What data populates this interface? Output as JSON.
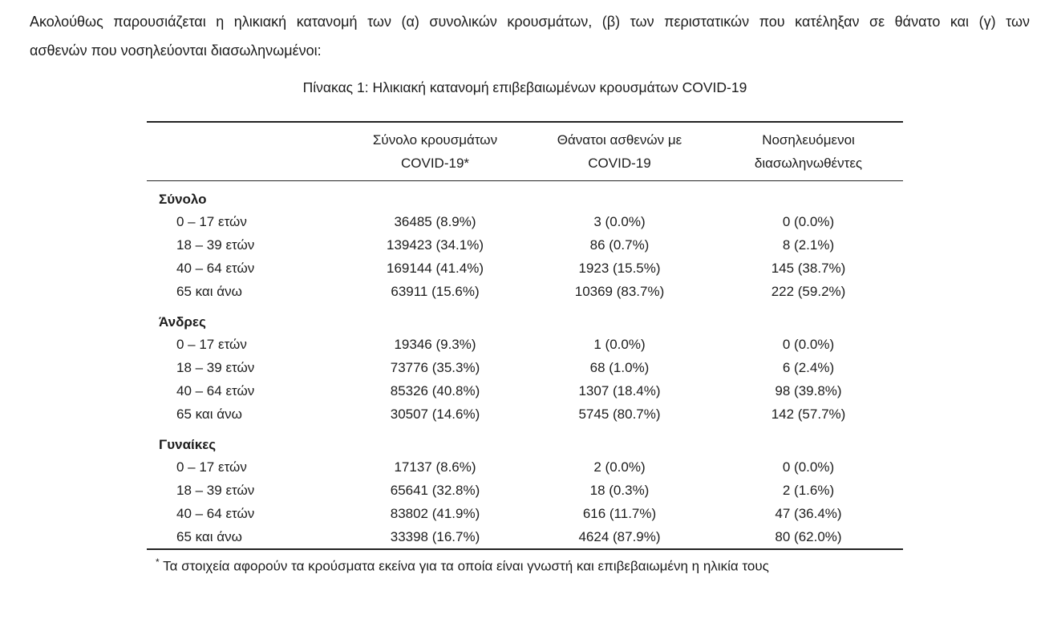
{
  "intro": {
    "lines": [
      "Ακολούθως παρουσιάζεται η ηλικιακή κατανομή των (α) συνολικών κρουσμάτων, (β) των περιστατικών που κατέληξαν σε θάνατο και (γ) των",
      "ασθενών που νοσηλεύονται διασωληνωμένοι:"
    ]
  },
  "table": {
    "title": "Πίνακας 1: Ηλικιακή κατανομή επιβεβαιωμένων κρουσμάτων COVID-19",
    "columns": [
      {
        "line1": "Σύνολο κρουσμάτων",
        "line2": "COVID-19*"
      },
      {
        "line1": "Θάνατοι ασθενών με",
        "line2": "COVID-19"
      },
      {
        "line1": "Νοσηλευόμενοι",
        "line2": "διασωληνωθέντες"
      }
    ],
    "groups": [
      {
        "label": "Σύνολο",
        "rows": [
          {
            "age": "0 – 17 ετών",
            "cases": "36485 (8.9%)",
            "deaths": "3 (0.0%)",
            "intubated": "0 (0.0%)"
          },
          {
            "age": "18 – 39 ετών",
            "cases": "139423 (34.1%)",
            "deaths": "86 (0.7%)",
            "intubated": "8 (2.1%)"
          },
          {
            "age": "40 – 64 ετών",
            "cases": "169144 (41.4%)",
            "deaths": "1923 (15.5%)",
            "intubated": "145 (38.7%)"
          },
          {
            "age": "65 και άνω",
            "cases": "63911 (15.6%)",
            "deaths": "10369 (83.7%)",
            "intubated": "222 (59.2%)"
          }
        ]
      },
      {
        "label": "Άνδρες",
        "rows": [
          {
            "age": "0 – 17 ετών",
            "cases": "19346 (9.3%)",
            "deaths": "1 (0.0%)",
            "intubated": "0 (0.0%)"
          },
          {
            "age": "18 – 39 ετών",
            "cases": "73776 (35.3%)",
            "deaths": "68 (1.0%)",
            "intubated": "6 (2.4%)"
          },
          {
            "age": "40 – 64 ετών",
            "cases": "85326 (40.8%)",
            "deaths": "1307 (18.4%)",
            "intubated": "98 (39.8%)"
          },
          {
            "age": "65 και άνω",
            "cases": "30507 (14.6%)",
            "deaths": "5745 (80.7%)",
            "intubated": "142 (57.7%)"
          }
        ]
      },
      {
        "label": "Γυναίκες",
        "rows": [
          {
            "age": "0 – 17 ετών",
            "cases": "17137 (8.6%)",
            "deaths": "2 (0.0%)",
            "intubated": "0 (0.0%)"
          },
          {
            "age": "18 – 39 ετών",
            "cases": "65641 (32.8%)",
            "deaths": "18 (0.3%)",
            "intubated": "2 (1.6%)"
          },
          {
            "age": "40 – 64 ετών",
            "cases": "83802 (41.9%)",
            "deaths": "616 (11.7%)",
            "intubated": "47 (36.4%)"
          },
          {
            "age": "65 και άνω",
            "cases": "33398 (16.7%)",
            "deaths": "4624 (87.9%)",
            "intubated": "80 (62.0%)"
          }
        ]
      }
    ],
    "footnote_marker": "*",
    "footnote": "Τα στοιχεία αφορούν τα κρούσματα εκείνα για τα οποία είναι γνωστή και επιβεβαιωμένη η ηλικία τους"
  }
}
